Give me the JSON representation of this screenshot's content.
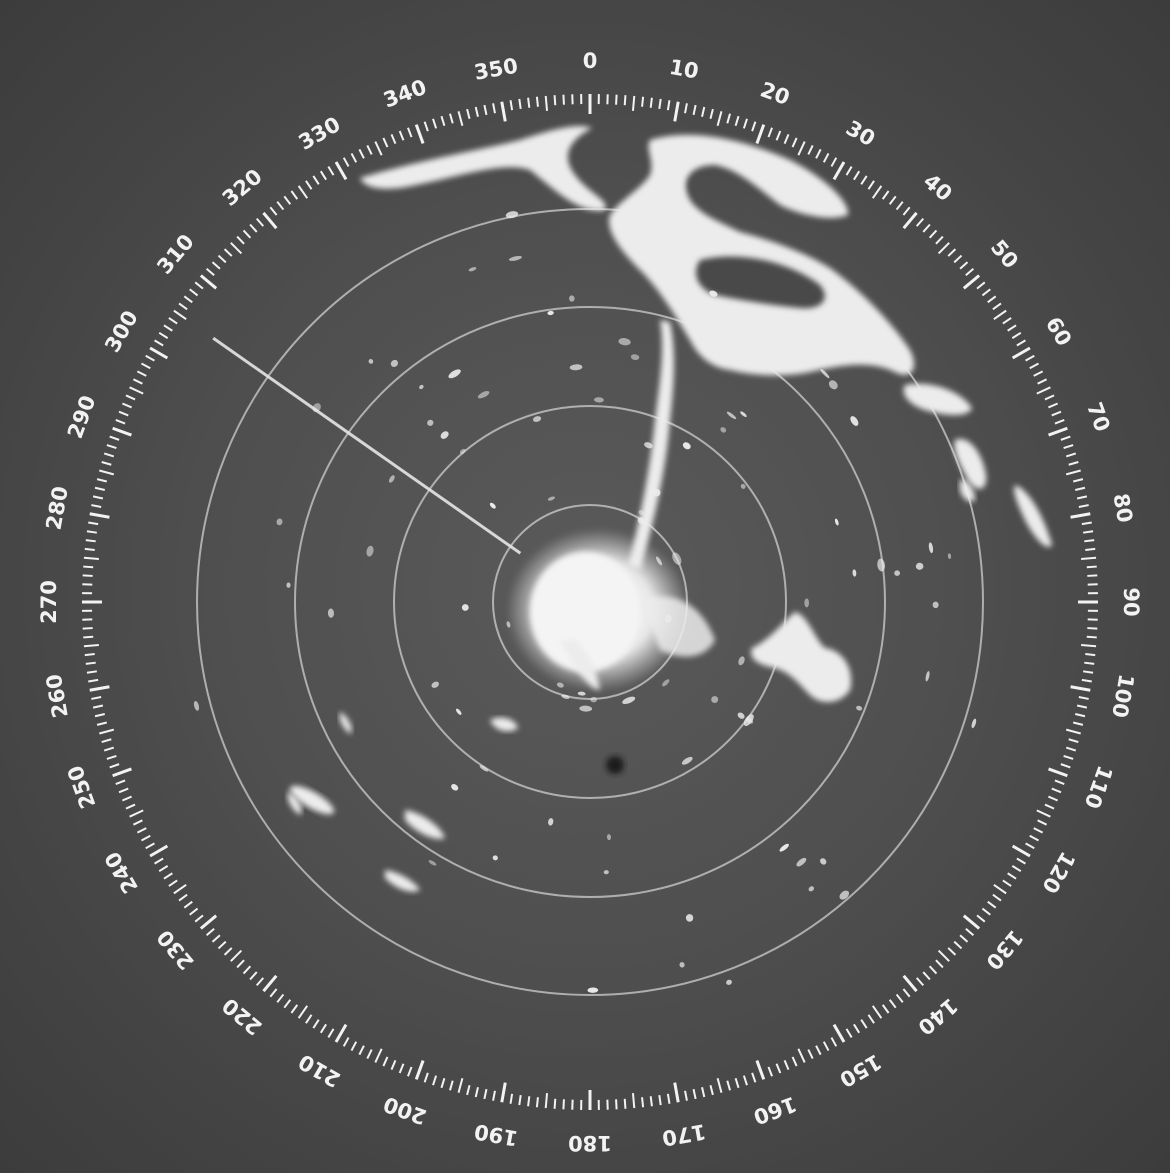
{
  "scope": {
    "bearing_labels": [
      "0",
      "10",
      "20",
      "30",
      "40",
      "50",
      "60",
      "70",
      "80",
      "90",
      "100",
      "110",
      "120",
      "130",
      "140",
      "150",
      "160",
      "170",
      "180",
      "190",
      "200",
      "210",
      "220",
      "230",
      "240",
      "250",
      "260",
      "270",
      "280",
      "290",
      "300",
      "310",
      "320",
      "330",
      "340",
      "350"
    ],
    "heading_cursor_bearing": 305
  },
  "colors": {
    "background": "#4e4e4e",
    "echo": "#ececec",
    "range_ring": "#cfcfcf",
    "scale": "#f2f2f2"
  }
}
